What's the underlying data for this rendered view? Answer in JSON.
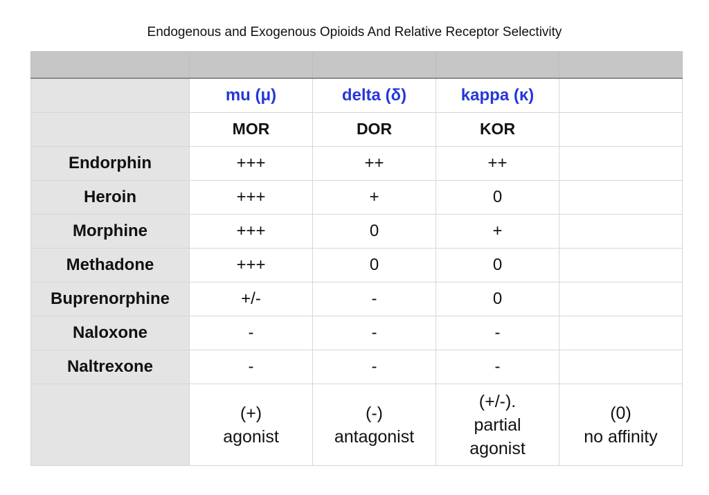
{
  "title": "Endogenous and Exogenous Opioids And Relative Receptor Selectivity",
  "colors": {
    "header_band": "#c6c6c6",
    "row_header_bg": "#e4e4e4",
    "greek_label": "#2637d8",
    "grid_line": "#d6d6d6"
  },
  "receptors": {
    "greek": [
      "mu (μ)",
      "delta (δ)",
      "kappa (κ)"
    ],
    "abbr": [
      "MOR",
      "DOR",
      "KOR"
    ]
  },
  "rows": [
    {
      "name": "Endorphin",
      "mu": "+++",
      "delta": "++",
      "kappa": "++"
    },
    {
      "name": "Heroin",
      "mu": "+++",
      "delta": "+",
      "kappa": "0"
    },
    {
      "name": "Morphine",
      "mu": "+++",
      "delta": "0",
      "kappa": "+"
    },
    {
      "name": "Methadone",
      "mu": "+++",
      "delta": "0",
      "kappa": "0"
    },
    {
      "name": "Buprenorphine",
      "mu": "+/-",
      "delta": "-",
      "kappa": "0"
    },
    {
      "name": "Naloxone",
      "mu": "-",
      "delta": "-",
      "kappa": "-"
    },
    {
      "name": "Naltrexone",
      "mu": "-",
      "delta": "-",
      "kappa": "-"
    }
  ],
  "legend": [
    {
      "symbol": "(+)",
      "label": "agonist"
    },
    {
      "symbol": "(-)",
      "label": "antagonist"
    },
    {
      "symbol": "(+/-).",
      "label": "partial agonist"
    },
    {
      "symbol": "(0)",
      "label": "no affinity"
    }
  ]
}
